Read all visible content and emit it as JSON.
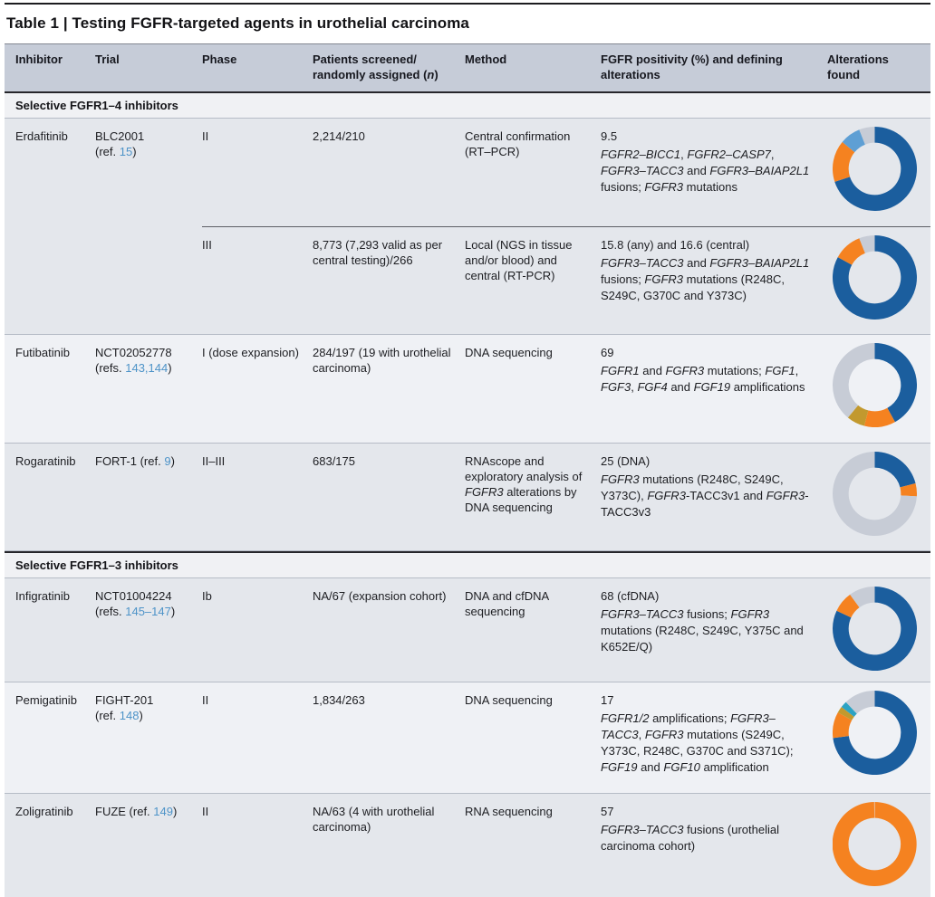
{
  "title": "Table 1 | Testing FGFR-targeted agents in urothelial carcinoma",
  "columns": {
    "inhibitor": "Inhibitor",
    "trial": "Trial",
    "phase": "Phase",
    "patients": [
      {
        "t": "Patients screened/"
      },
      {
        "br": true
      },
      {
        "t": "randomly assigned ("
      },
      {
        "t": "n",
        "i": true
      },
      {
        "t": ")"
      }
    ],
    "method": "Method",
    "fgfr": "FGFR positivity (%) and defining alterations",
    "alterations": "Alterations found"
  },
  "sections": {
    "one": "Selective FGFR1–4 inhibitors",
    "two": "Selective FGFR1–3 inhibitors"
  },
  "rows": {
    "erdafitinib": {
      "inhibitor": "Erdafitinib",
      "trial": [
        {
          "t": "BLC2001"
        },
        {
          "br": true
        },
        {
          "t": "(ref. "
        },
        {
          "t": "15",
          "l": true
        },
        {
          "t": ")"
        }
      ],
      "sub": [
        {
          "phase": "II",
          "patients": "2,214/210",
          "method": [
            {
              "t": "Central confirmation (RT–PCR)"
            }
          ],
          "fgfr_value": "9.5",
          "fgfr_detail": [
            {
              "t": "FGFR2–BICC1",
              "i": true
            },
            {
              "t": ", "
            },
            {
              "t": "FGFR2–CASP7",
              "i": true
            },
            {
              "t": ", "
            },
            {
              "t": "FGFR3–",
              "i": true
            },
            {
              "t": "TACC3",
              "i": true
            },
            {
              "t": " and "
            },
            {
              "t": "FGFR3–BAIAP2L1",
              "i": true
            },
            {
              "t": " fusions; "
            },
            {
              "t": "FGFR3",
              "i": true
            },
            {
              "t": " mutations"
            }
          ]
        },
        {
          "phase": "III",
          "patients": "8,773 (7,293 valid as per central testing)/266",
          "method": [
            {
              "t": "Local (NGS in tissue and/or blood) and central (RT-PCR)"
            }
          ],
          "fgfr_value": "15.8 (any) and 16.6 (central)",
          "fgfr_detail": [
            {
              "t": "FGFR3–TACC3",
              "i": true
            },
            {
              "t": " and "
            },
            {
              "t": "FGFR3–BAIAP2L1",
              "i": true
            },
            {
              "t": " fusions; "
            },
            {
              "t": "FGFR3",
              "i": true
            },
            {
              "t": " mutations (R248C, S249C, G370C and Y373C)"
            }
          ]
        }
      ]
    },
    "futibatinib": {
      "inhibitor": "Futibatinib",
      "trial": [
        {
          "t": "NCT02052778"
        },
        {
          "br": true
        },
        {
          "t": "(refs. "
        },
        {
          "t": "143,144",
          "l": true
        },
        {
          "t": ")"
        }
      ],
      "phase": "I (dose expansion)",
      "patients": "284/197 (19 with urothelial carcinoma)",
      "method": [
        {
          "t": "DNA sequencing"
        }
      ],
      "fgfr_value": "69",
      "fgfr_detail": [
        {
          "t": "FGFR1",
          "i": true
        },
        {
          "t": " and "
        },
        {
          "t": "FGFR3",
          "i": true
        },
        {
          "t": " mutations; "
        },
        {
          "t": "FGF1",
          "i": true
        },
        {
          "t": ", "
        },
        {
          "t": "FGF3",
          "i": true
        },
        {
          "t": ", "
        },
        {
          "t": "FGF4",
          "i": true
        },
        {
          "t": " and "
        },
        {
          "t": "FGF19",
          "i": true
        },
        {
          "t": " amplifications"
        }
      ]
    },
    "rogaratinib": {
      "inhibitor": "Rogaratinib",
      "trial": [
        {
          "t": "FORT-1 (ref. "
        },
        {
          "t": "9",
          "l": true
        },
        {
          "t": ")"
        }
      ],
      "phase": "II–III",
      "patients": "683/175",
      "method": [
        {
          "t": "RNAscope and exploratory analysis of "
        },
        {
          "t": "FGFR3",
          "i": true
        },
        {
          "t": " alterations by DNA sequencing"
        }
      ],
      "fgfr_value": "25 (DNA)",
      "fgfr_detail": [
        {
          "t": "FGFR3",
          "i": true
        },
        {
          "t": " mutations (R248C, S249C, Y373C), "
        },
        {
          "t": "FGFR3",
          "i": true
        },
        {
          "t": "-TACC3v1 and "
        },
        {
          "t": "FGFR3",
          "i": true
        },
        {
          "t": "-TACC3v3"
        }
      ]
    },
    "infigratinib": {
      "inhibitor": "Infigratinib",
      "trial": [
        {
          "t": "NCT01004224"
        },
        {
          "br": true
        },
        {
          "t": "(refs. "
        },
        {
          "t": "145–147",
          "l": true
        },
        {
          "t": ")"
        }
      ],
      "phase": "Ib",
      "patients": "NA/67 (expansion cohort)",
      "method": [
        {
          "t": "DNA and cfDNA sequencing"
        }
      ],
      "fgfr_value": "68 (cfDNA)",
      "fgfr_detail": [
        {
          "t": "FGFR3–TACC3",
          "i": true
        },
        {
          "t": " fusions; "
        },
        {
          "t": "FGFR3",
          "i": true
        },
        {
          "t": " mutations (R248C, S249C, Y375C and K652E/Q)"
        }
      ]
    },
    "pemigatinib": {
      "inhibitor": "Pemigatinib",
      "trial": [
        {
          "t": "FIGHT-201"
        },
        {
          "br": true
        },
        {
          "t": "(ref. "
        },
        {
          "t": "148",
          "l": true
        },
        {
          "t": ")"
        }
      ],
      "phase": "II",
      "patients": "1,834/263",
      "method": [
        {
          "t": "DNA sequencing"
        }
      ],
      "fgfr_value": "17",
      "fgfr_detail": [
        {
          "t": "FGFR1/2",
          "i": true
        },
        {
          "t": " amplifications; "
        },
        {
          "t": "FGFR3–",
          "i": true
        },
        {
          "t": "TACC3",
          "i": true
        },
        {
          "t": ", "
        },
        {
          "t": "FGFR3",
          "i": true
        },
        {
          "t": " mutations (S249C, Y373C, R248C, G370C and S371C); "
        },
        {
          "t": "FGF19",
          "i": true
        },
        {
          "t": " and "
        },
        {
          "t": "FGF10",
          "i": true
        },
        {
          "t": " amplification"
        }
      ]
    },
    "zoligratinib": {
      "inhibitor": "Zoligratinib",
      "trial": [
        {
          "t": "FUZE (ref. "
        },
        {
          "t": "149",
          "l": true
        },
        {
          "t": ")"
        }
      ],
      "phase": "II",
      "patients": "NA/63 (4 with urothelial carcinoma)",
      "method": [
        {
          "t": "RNA sequencing"
        }
      ],
      "fgfr_value": "57",
      "fgfr_detail": [
        {
          "t": "FGFR3–TACC3",
          "i": true
        },
        {
          "t": " fusions (urothelial carcinoma cohort)"
        }
      ]
    }
  },
  "palette": {
    "dark_blue": "#1b5e9e",
    "orange": "#f58220",
    "light_blue": "#5e9fd4",
    "gray": "#c7ccd6",
    "mustard": "#c2992e",
    "teal": "#2ba3c4"
  },
  "chart_data": [
    {
      "type": "donut",
      "row": "Erdafitinib BLC2001 phase II",
      "order": "clockwise from 12 o'clock",
      "segments": [
        {
          "color": "#1b5e9e",
          "value": 70
        },
        {
          "color": "#f58220",
          "value": 16
        },
        {
          "color": "#5e9fd4",
          "value": 8
        },
        {
          "color": "#c7ccd6",
          "value": 6
        }
      ]
    },
    {
      "type": "donut",
      "row": "Erdafitinib phase III",
      "order": "clockwise from 12 o'clock",
      "segments": [
        {
          "color": "#1b5e9e",
          "value": 83
        },
        {
          "color": "#f58220",
          "value": 11
        },
        {
          "color": "#c7ccd6",
          "value": 6
        }
      ]
    },
    {
      "type": "donut",
      "row": "Futibatinib",
      "order": "clockwise from 12 o'clock",
      "segments": [
        {
          "color": "#1b5e9e",
          "value": 42
        },
        {
          "color": "#f58220",
          "value": 12
        },
        {
          "color": "#c2992e",
          "value": 7
        },
        {
          "color": "#c7ccd6",
          "value": 39
        }
      ]
    },
    {
      "type": "donut",
      "row": "Rogaratinib",
      "order": "clockwise from 12 o'clock",
      "segments": [
        {
          "color": "#1b5e9e",
          "value": 21
        },
        {
          "color": "#f58220",
          "value": 5
        },
        {
          "color": "#c7ccd6",
          "value": 74
        }
      ]
    },
    {
      "type": "donut",
      "row": "Infigratinib",
      "order": "clockwise from 12 o'clock",
      "segments": [
        {
          "color": "#1b5e9e",
          "value": 82
        },
        {
          "color": "#f58220",
          "value": 8
        },
        {
          "color": "#c7ccd6",
          "value": 10
        }
      ]
    },
    {
      "type": "donut",
      "row": "Pemigatinib",
      "order": "clockwise from 12 o'clock",
      "segments": [
        {
          "color": "#1b5e9e",
          "value": 73
        },
        {
          "color": "#f58220",
          "value": 10
        },
        {
          "color": "#c2992e",
          "value": 2.5
        },
        {
          "color": "#2ba3c4",
          "value": 2.5
        },
        {
          "color": "#c7ccd6",
          "value": 12
        }
      ]
    },
    {
      "type": "donut",
      "row": "Zoligratinib",
      "order": "clockwise from 12 o'clock",
      "segments": [
        {
          "color": "#f58220",
          "value": 100
        }
      ]
    }
  ]
}
